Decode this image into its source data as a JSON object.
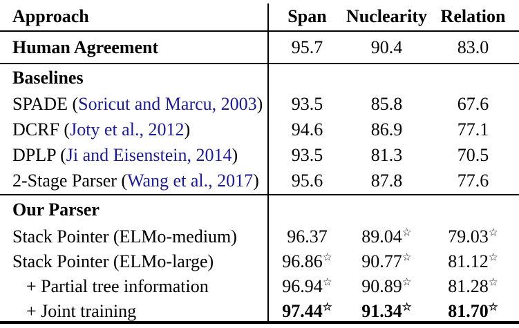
{
  "table": {
    "star_symbol": "☆",
    "link_color": "#1c1c8f",
    "columns": [
      "Approach",
      "Span",
      "Nuclearity",
      "Relation"
    ],
    "sections": [
      {
        "header": null,
        "rows": [
          {
            "label": {
              "prefix": "Human Agreement",
              "citation": "",
              "suffix": ""
            },
            "label_bold": true,
            "indent": false,
            "values": [
              {
                "text": "95.7",
                "star": false,
                "bold": false
              },
              {
                "text": "90.4",
                "star": false,
                "bold": false
              },
              {
                "text": "83.0",
                "star": false,
                "bold": false
              }
            ]
          }
        ]
      },
      {
        "header": "Baselines",
        "rows": [
          {
            "label": {
              "prefix": "SPADE (",
              "citation": "Soricut and Marcu, 2003",
              "suffix": ")"
            },
            "label_bold": false,
            "indent": false,
            "values": [
              {
                "text": "93.5",
                "star": false,
                "bold": false
              },
              {
                "text": "85.8",
                "star": false,
                "bold": false
              },
              {
                "text": "67.6",
                "star": false,
                "bold": false
              }
            ]
          },
          {
            "label": {
              "prefix": "DCRF (",
              "citation": "Joty et al., 2012",
              "suffix": ")"
            },
            "label_bold": false,
            "indent": false,
            "values": [
              {
                "text": "94.6",
                "star": false,
                "bold": false
              },
              {
                "text": "86.9",
                "star": false,
                "bold": false
              },
              {
                "text": "77.1",
                "star": false,
                "bold": false
              }
            ]
          },
          {
            "label": {
              "prefix": "DPLP (",
              "citation": "Ji and Eisenstein, 2014",
              "suffix": ")"
            },
            "label_bold": false,
            "indent": false,
            "values": [
              {
                "text": "93.5",
                "star": false,
                "bold": false
              },
              {
                "text": "81.3",
                "star": false,
                "bold": false
              },
              {
                "text": "70.5",
                "star": false,
                "bold": false
              }
            ]
          },
          {
            "label": {
              "prefix": "2-Stage Parser (",
              "citation": "Wang et al., 2017",
              "suffix": ")"
            },
            "label_bold": false,
            "indent": false,
            "values": [
              {
                "text": "95.6",
                "star": false,
                "bold": false
              },
              {
                "text": "87.8",
                "star": false,
                "bold": false
              },
              {
                "text": "77.6",
                "star": false,
                "bold": false
              }
            ]
          }
        ]
      },
      {
        "header": "Our Parser",
        "rows": [
          {
            "label": {
              "prefix": "Stack Pointer (ELMo-medium)",
              "citation": "",
              "suffix": ""
            },
            "label_bold": false,
            "indent": false,
            "values": [
              {
                "text": "96.37",
                "star": false,
                "bold": false
              },
              {
                "text": "89.04",
                "star": true,
                "bold": false
              },
              {
                "text": "79.03",
                "star": true,
                "bold": false
              }
            ]
          },
          {
            "label": {
              "prefix": "Stack Pointer (ELMo-large)",
              "citation": "",
              "suffix": ""
            },
            "label_bold": false,
            "indent": false,
            "values": [
              {
                "text": "96.86",
                "star": true,
                "bold": false
              },
              {
                "text": "90.77",
                "star": true,
                "bold": false
              },
              {
                "text": "81.12",
                "star": true,
                "bold": false
              }
            ]
          },
          {
            "label": {
              "prefix": "+ Partial tree information",
              "citation": "",
              "suffix": ""
            },
            "label_bold": false,
            "indent": true,
            "values": [
              {
                "text": "96.94",
                "star": true,
                "bold": false
              },
              {
                "text": "90.89",
                "star": true,
                "bold": false
              },
              {
                "text": "81.28",
                "star": true,
                "bold": false
              }
            ]
          },
          {
            "label": {
              "prefix": "+ Joint training",
              "citation": "",
              "suffix": ""
            },
            "label_bold": false,
            "indent": true,
            "values": [
              {
                "text": "97.44",
                "star": true,
                "bold": true
              },
              {
                "text": "91.34",
                "star": true,
                "bold": true
              },
              {
                "text": "81.70",
                "star": true,
                "bold": true
              }
            ]
          }
        ]
      }
    ]
  }
}
